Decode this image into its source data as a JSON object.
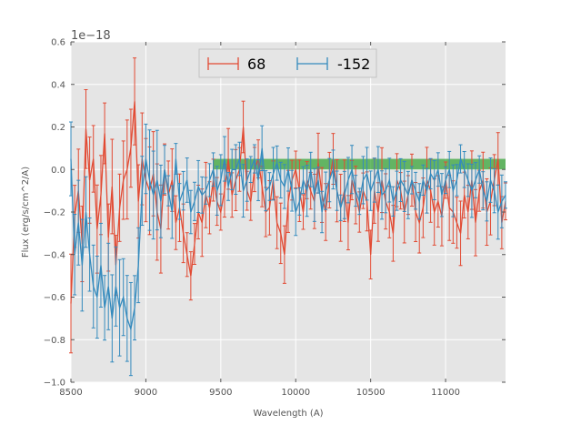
{
  "chart_data": {
    "type": "line",
    "title": "",
    "xlabel": "Wavelength (A)",
    "ylabel": "Flux (erg/s/cm^2/A)",
    "y_offset_label": "1e−18",
    "xlim": [
      8500,
      11400
    ],
    "ylim": [
      -1.0,
      0.6
    ],
    "xticks": [
      8500,
      9000,
      9500,
      10000,
      10500,
      11000
    ],
    "yticks": [
      -1.0,
      -0.8,
      -0.6,
      -0.4,
      -0.2,
      0.0,
      0.2,
      0.4,
      0.6
    ],
    "ytick_labels": [
      "−1.0",
      "−0.8",
      "−0.6",
      "−0.4",
      "−0.2",
      "0.0",
      "0.2",
      "0.4",
      "0.6"
    ],
    "grid": true,
    "legend_position": "top-center",
    "band": {
      "x_start": 9450,
      "x_end": 11400,
      "y_low": 0.0,
      "y_high": 0.05,
      "color": "#2ca02c"
    },
    "x": [
      8500,
      8525,
      8550,
      8575,
      8600,
      8625,
      8650,
      8675,
      8700,
      8725,
      8750,
      8775,
      8800,
      8825,
      8850,
      8875,
      8900,
      8925,
      8950,
      8975,
      9000,
      9025,
      9050,
      9075,
      9100,
      9125,
      9150,
      9175,
      9200,
      9225,
      9250,
      9275,
      9300,
      9325,
      9350,
      9375,
      9400,
      9425,
      9450,
      9475,
      9500,
      9525,
      9550,
      9575,
      9600,
      9625,
      9650,
      9675,
      9700,
      9725,
      9750,
      9775,
      9800,
      9825,
      9850,
      9875,
      9900,
      9925,
      9950,
      9975,
      10000,
      10025,
      10050,
      10075,
      10100,
      10125,
      10150,
      10175,
      10200,
      10225,
      10250,
      10275,
      10300,
      10325,
      10350,
      10375,
      10400,
      10425,
      10450,
      10475,
      10500,
      10525,
      10550,
      10575,
      10600,
      10625,
      10650,
      10675,
      10700,
      10725,
      10750,
      10775,
      10800,
      10825,
      10850,
      10875,
      10900,
      10925,
      10950,
      10975,
      11000,
      11025,
      11050,
      11075,
      11100,
      11125,
      11150,
      11175,
      11200,
      11225,
      11250,
      11275,
      11300,
      11325,
      11350,
      11375,
      11400
    ],
    "series": [
      {
        "name": "68",
        "color": "#e24a33",
        "values": [
          -0.63,
          -0.22,
          -0.1,
          -0.35,
          0.19,
          -0.05,
          0.05,
          -0.28,
          -0.12,
          0.17,
          -0.32,
          -0.08,
          -0.45,
          -0.18,
          -0.05,
          0.0,
          0.1,
          0.32,
          -0.15,
          0.05,
          -0.05,
          -0.1,
          -0.02,
          -0.2,
          -0.28,
          0.0,
          -0.12,
          -0.05,
          -0.25,
          -0.18,
          -0.3,
          -0.4,
          -0.5,
          -0.35,
          -0.2,
          -0.25,
          -0.12,
          -0.18,
          -0.05,
          -0.15,
          -0.2,
          -0.1,
          0.05,
          -0.12,
          -0.05,
          0.0,
          0.2,
          -0.1,
          -0.15,
          0.0,
          0.05,
          -0.08,
          -0.2,
          -0.18,
          -0.05,
          -0.25,
          -0.3,
          -0.4,
          -0.15,
          -0.05,
          0.0,
          -0.1,
          -0.2,
          -0.05,
          -0.1,
          -0.15,
          0.03,
          -0.12,
          -0.2,
          -0.05,
          0.05,
          -0.1,
          -0.18,
          -0.1,
          -0.25,
          -0.05,
          -0.12,
          -0.2,
          -0.1,
          -0.15,
          -0.4,
          -0.1,
          -0.2,
          -0.05,
          -0.15,
          -0.2,
          -0.3,
          -0.05,
          -0.1,
          -0.2,
          -0.12,
          -0.05,
          -0.2,
          -0.25,
          -0.18,
          -0.05,
          -0.1,
          -0.2,
          -0.15,
          -0.22,
          -0.05,
          -0.18,
          -0.2,
          -0.25,
          -0.3,
          -0.12,
          -0.2,
          -0.05,
          -0.25,
          -0.1,
          -0.05,
          -0.2,
          -0.15,
          -0.05,
          0.05,
          -0.25,
          -0.15
        ]
      },
      {
        "name": "-152",
        "color": "#348abd",
        "values": [
          0.05,
          -0.4,
          -0.25,
          -0.45,
          -0.2,
          -0.4,
          -0.55,
          -0.6,
          -0.45,
          -0.65,
          -0.55,
          -0.7,
          -0.55,
          -0.65,
          -0.6,
          -0.7,
          -0.75,
          -0.65,
          -0.45,
          -0.1,
          0.05,
          -0.05,
          -0.12,
          -0.05,
          -0.15,
          0.0,
          -0.1,
          -0.2,
          0.05,
          -0.15,
          -0.1,
          -0.05,
          -0.2,
          -0.15,
          -0.08,
          -0.12,
          -0.1,
          -0.05,
          0.0,
          -0.1,
          -0.05,
          0.05,
          -0.08,
          0.0,
          0.0,
          0.05,
          -0.1,
          -0.05,
          0.0,
          0.05,
          -0.05,
          0.1,
          -0.1,
          -0.08,
          -0.02,
          0.03,
          -0.05,
          -0.08,
          0.0,
          -0.1,
          -0.2,
          -0.15,
          -0.05,
          -0.1,
          0.0,
          -0.12,
          -0.05,
          -0.2,
          -0.1,
          -0.05,
          0.0,
          -0.1,
          -0.18,
          -0.12,
          -0.05,
          0.0,
          -0.1,
          -0.15,
          -0.05,
          -0.02,
          -0.1,
          -0.05,
          0.0,
          -0.12,
          -0.1,
          -0.05,
          -0.15,
          -0.1,
          -0.05,
          -0.08,
          -0.12,
          -0.05,
          -0.1,
          -0.15,
          -0.05,
          -0.1,
          -0.02,
          -0.05,
          0.0,
          -0.12,
          -0.05,
          0.0,
          -0.1,
          -0.05,
          0.05,
          0.0,
          -0.05,
          -0.1,
          -0.05,
          0.0,
          -0.1,
          -0.15,
          -0.05,
          -0.1,
          -0.2,
          -0.15,
          -0.12
        ]
      }
    ]
  }
}
